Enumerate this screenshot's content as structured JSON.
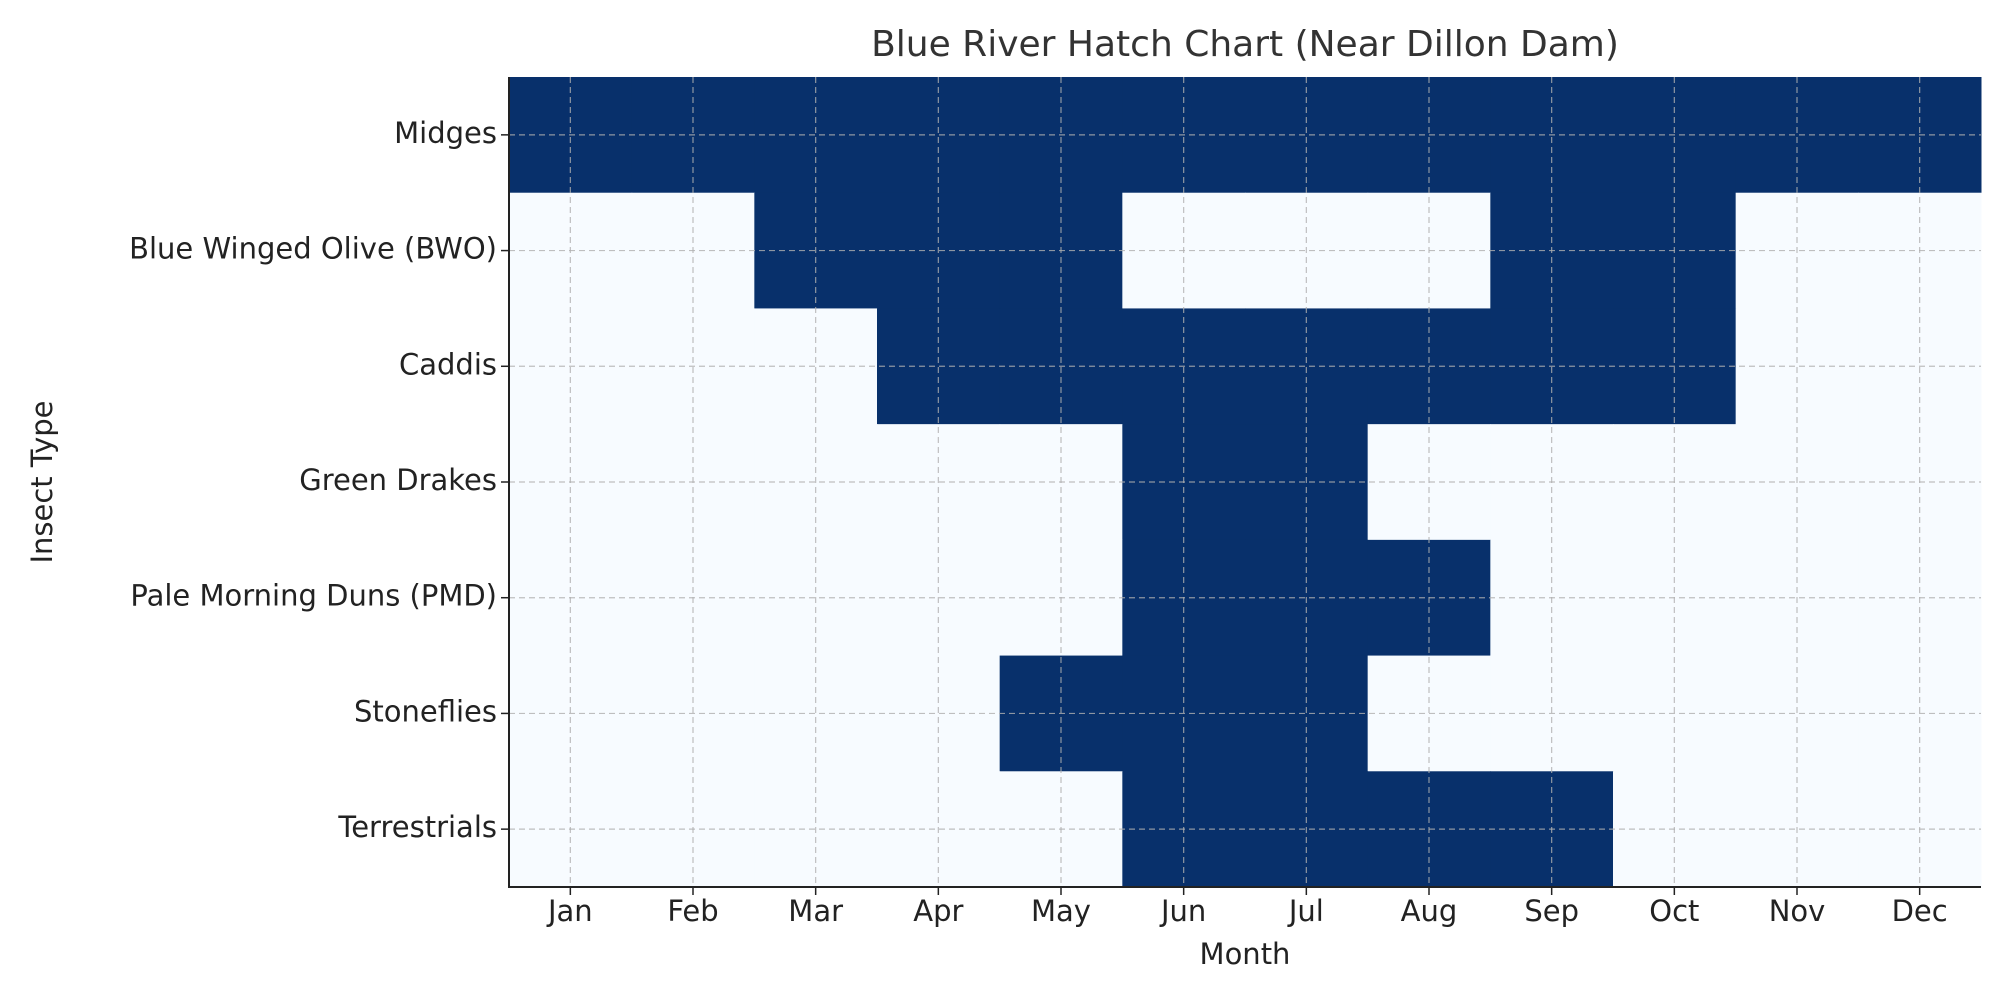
{
  "chart_data": {
    "type": "heatmap",
    "title": "Blue River Hatch Chart (Near Dillon Dam)",
    "xlabel": "Month",
    "ylabel": "Insect Type",
    "x": [
      "Jan",
      "Feb",
      "Mar",
      "Apr",
      "May",
      "Jun",
      "Jul",
      "Aug",
      "Sep",
      "Oct",
      "Nov",
      "Dec"
    ],
    "y": [
      "Midges",
      "Blue Winged Olive (BWO)",
      "Caddis",
      "Green Drakes",
      "Pale Morning Duns (PMD)",
      "Stoneflies",
      "Terrestrials"
    ],
    "values": [
      [
        1,
        1,
        1,
        1,
        1,
        1,
        1,
        1,
        1,
        1,
        1,
        1
      ],
      [
        0,
        0,
        1,
        1,
        1,
        0,
        0,
        0,
        1,
        1,
        0,
        0
      ],
      [
        0,
        0,
        0,
        1,
        1,
        1,
        1,
        1,
        1,
        1,
        0,
        0
      ],
      [
        0,
        0,
        0,
        0,
        0,
        1,
        1,
        0,
        0,
        0,
        0,
        0
      ],
      [
        0,
        0,
        0,
        0,
        0,
        1,
        1,
        1,
        0,
        0,
        0,
        0
      ],
      [
        0,
        0,
        0,
        0,
        1,
        1,
        1,
        0,
        0,
        0,
        0,
        0
      ],
      [
        0,
        0,
        0,
        0,
        0,
        1,
        1,
        1,
        1,
        0,
        0,
        0
      ]
    ],
    "colors": [
      "#f7fbff",
      "#08306b"
    ],
    "grid": true
  }
}
